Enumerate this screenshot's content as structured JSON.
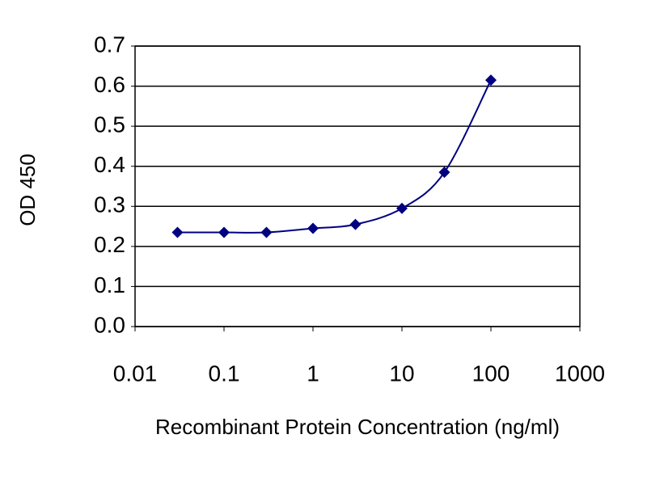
{
  "chart_data": {
    "type": "line",
    "xlabel": "Recombinant Protein Concentration (ng/ml)",
    "ylabel": "OD 450",
    "x": [
      0.03,
      0.1,
      0.3,
      1,
      3,
      10,
      30,
      100
    ],
    "series": [
      {
        "color": "#000080",
        "values": [
          0.235,
          0.235,
          0.235,
          0.245,
          0.255,
          0.295,
          0.385,
          0.615
        ]
      }
    ],
    "xscale": "log",
    "xlim": [
      0.01,
      1000
    ],
    "xticks": [
      0.01,
      0.1,
      1,
      10,
      100,
      1000
    ],
    "ylim": [
      0,
      0.7
    ],
    "yticks": [
      {
        "value": 0,
        "label": "0.0"
      },
      0.1,
      0.2,
      0.3,
      0.4,
      0.5,
      0.6,
      0.7
    ],
    "grid": true
  }
}
